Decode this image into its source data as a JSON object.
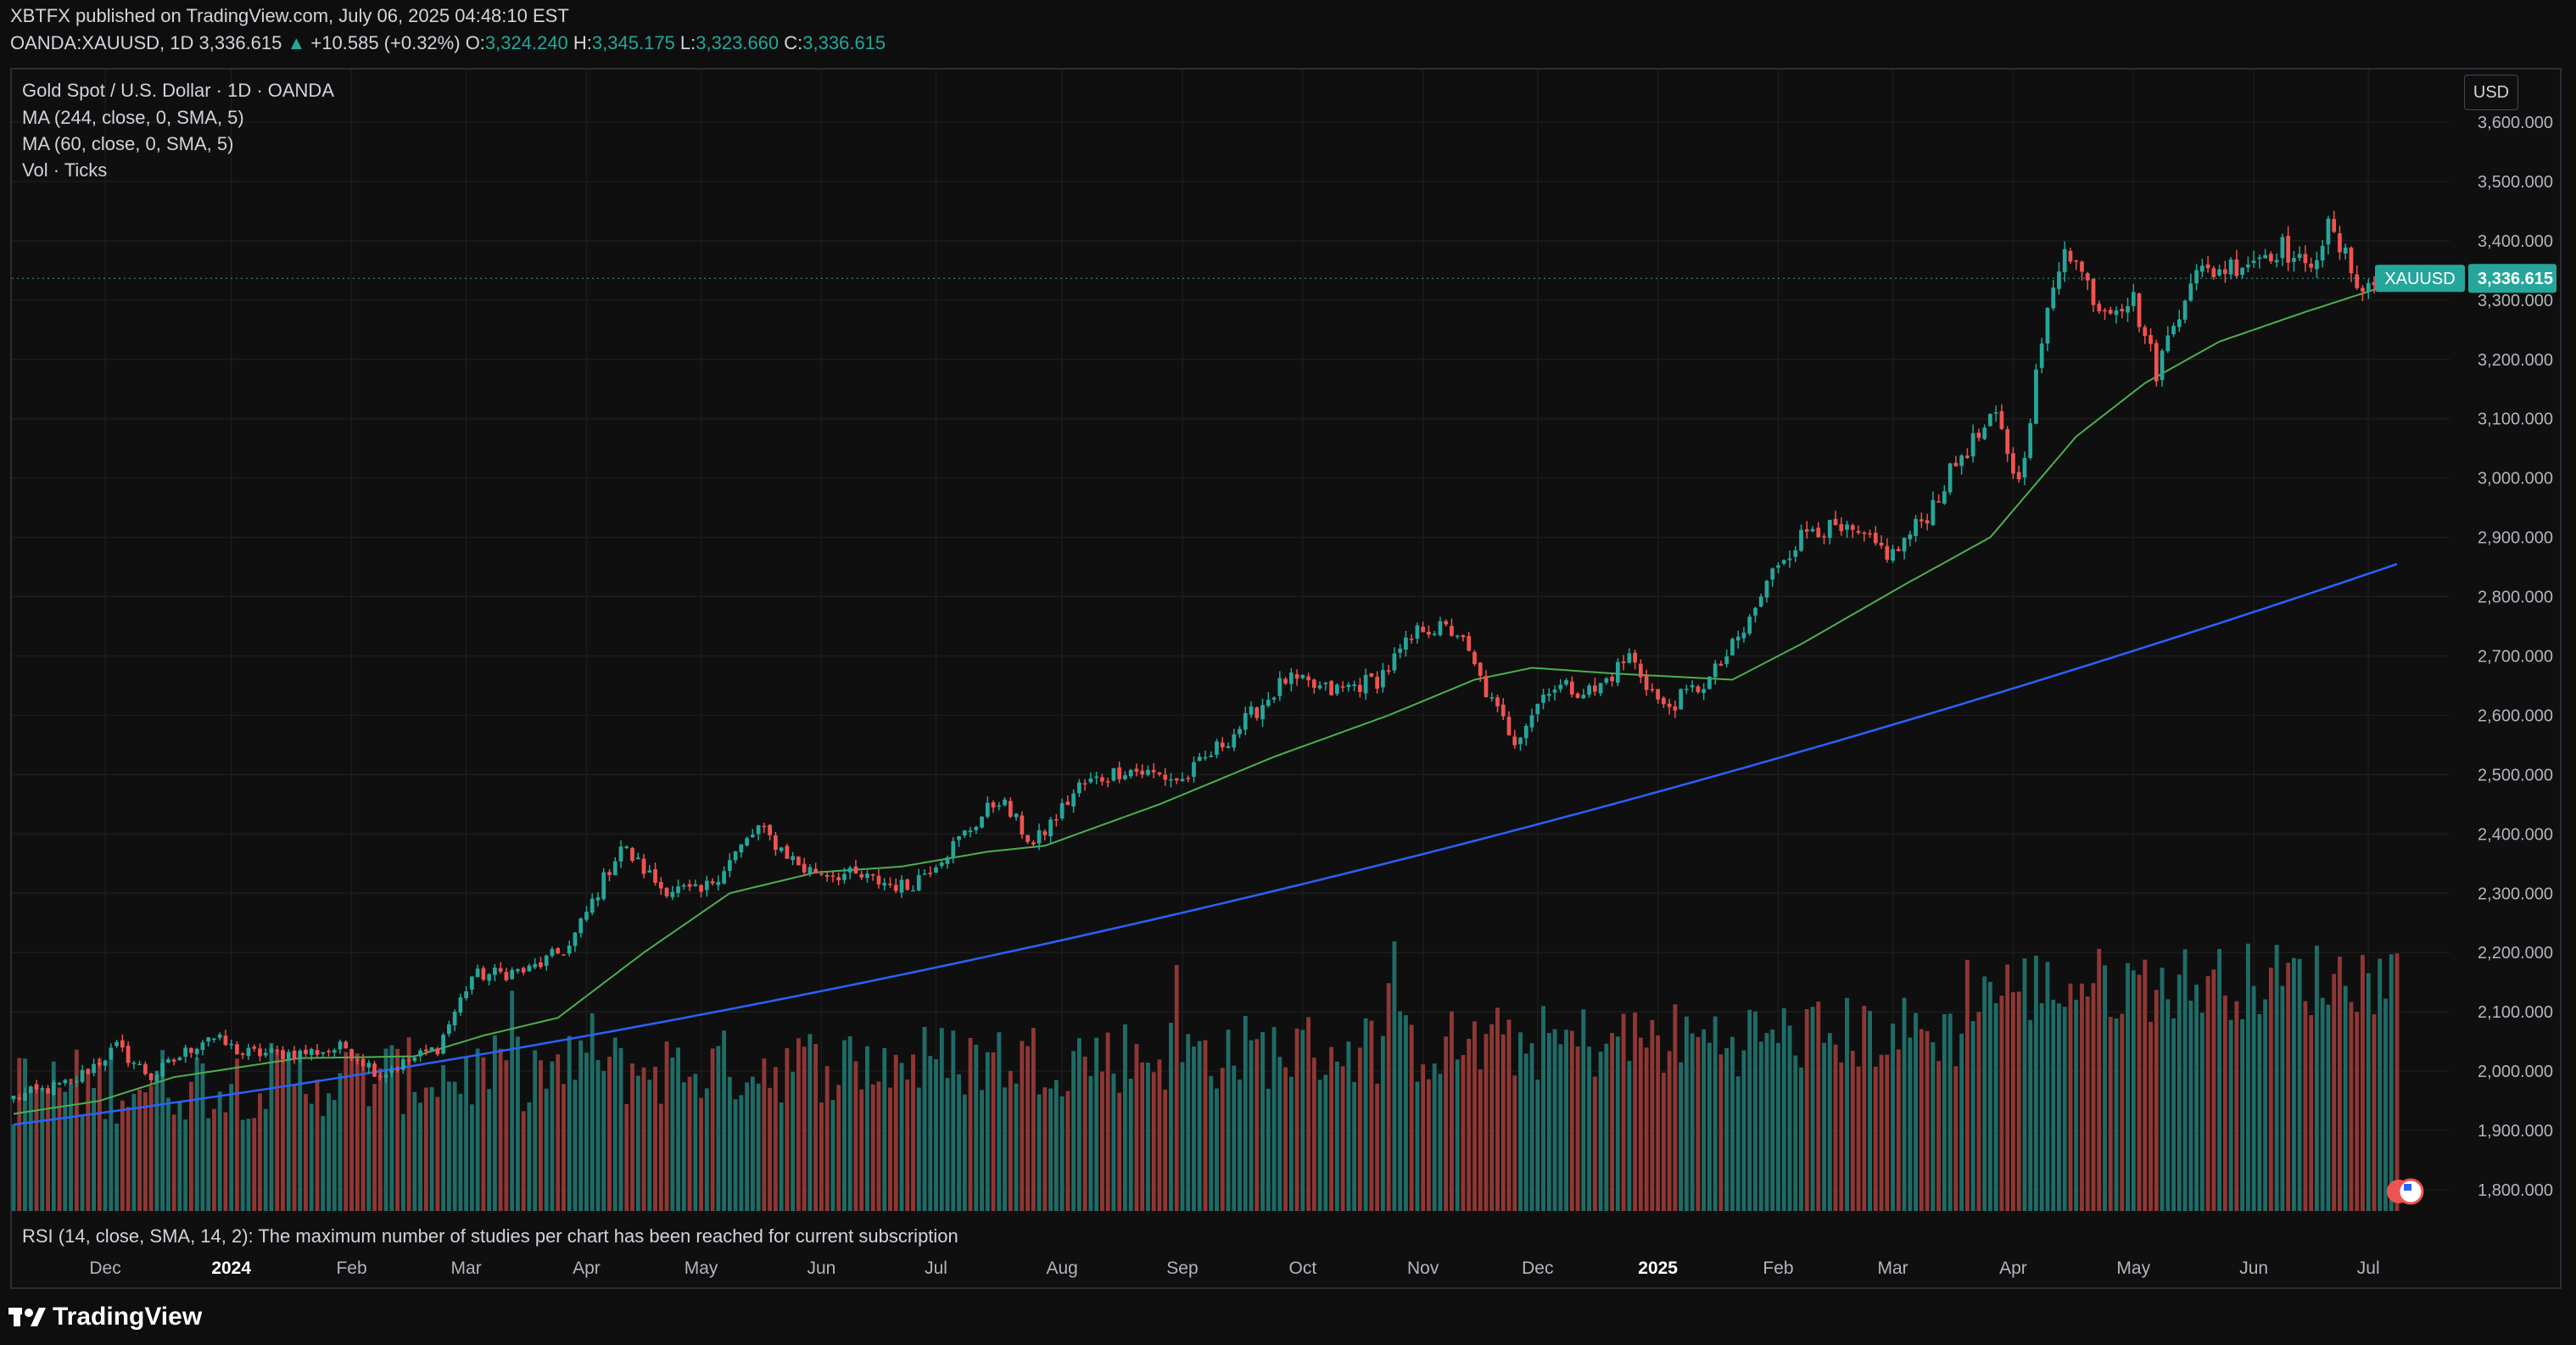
{
  "header": {
    "publisher_line": "XBTFX published on TradingView.com, July 06, 2025 04:48:10 EST",
    "symbol": "OANDA:XAUUSD, 1D",
    "last": "3,336.615",
    "change_arrow": "▲",
    "change": "+10.585 (+0.32%)",
    "o_label": "O:",
    "o_value": "3,324.240",
    "h_label": "H:",
    "h_value": "3,345.175",
    "l_label": "L:",
    "l_value": "3,323.660",
    "c_label": "C:",
    "c_value": "3,336.615"
  },
  "legend": {
    "title": "Gold Spot / U.S. Dollar · 1D · OANDA",
    "ma1": "MA (244, close, 0, SMA, 5)",
    "ma2": "MA (60, close, 0, SMA, 5)",
    "vol": "Vol · Ticks"
  },
  "currency_button": "USD",
  "rsi_message": "RSI (14, close, SMA, 14, 2): The maximum number of studies per chart has been reached for current subscription",
  "brand": "TradingView",
  "colors": {
    "up": "#26a69a",
    "down": "#ef5350",
    "vol_up": "#1f6b66",
    "vol_down": "#8e3734",
    "ma244": "#2962ff",
    "ma60": "#4caf50",
    "price_tag": "#26a69a"
  },
  "chart_data": {
    "type": "candlestick",
    "title": "Gold Spot / U.S. Dollar · 1D · OANDA",
    "price_axis": {
      "ylim": [
        1760,
        3640
      ],
      "ticks": [
        1800,
        1900,
        2000,
        2100,
        2200,
        2300,
        2400,
        2500,
        2600,
        2700,
        2800,
        2900,
        3000,
        3100,
        3200,
        3300,
        3400,
        3500,
        3600
      ],
      "tick_labels": [
        "1,800.000",
        "1,900.000",
        "2,000.000",
        "2,100.000",
        "2,200.000",
        "2,300.000",
        "2,400.000",
        "2,500.000",
        "2,600.000",
        "2,700.000",
        "2,800.000",
        "2,900.000",
        "3,000.000",
        "3,100.000",
        "3,200.000",
        "3,300.000",
        "3,400.000",
        "3,500.000",
        "3,600.000"
      ]
    },
    "time_axis": {
      "labels": [
        "Dec",
        "2024",
        "Feb",
        "Mar",
        "Apr",
        "May",
        "Jun",
        "Jul",
        "Aug",
        "Sep",
        "Oct",
        "Nov",
        "Dec",
        "2025",
        "Feb",
        "Mar",
        "Apr",
        "May",
        "Jun",
        "Jul"
      ],
      "bold": [
        "2024",
        "2025"
      ],
      "label_bar_index": [
        16,
        38,
        59,
        79,
        100,
        120,
        141,
        161,
        183,
        204,
        225,
        246,
        266,
        287,
        308,
        328,
        349,
        370,
        391,
        411
      ]
    },
    "price_line": {
      "label": "XAUUSD",
      "value": 3336.615,
      "value_label": "3,336.615"
    },
    "ma244": {
      "start": 1910,
      "end": 2855
    },
    "close_anchors": [
      [
        0,
        1955
      ],
      [
        10,
        1980
      ],
      [
        18,
        2040
      ],
      [
        24,
        1990
      ],
      [
        34,
        2060
      ],
      [
        40,
        2030
      ],
      [
        50,
        2030
      ],
      [
        58,
        2040
      ],
      [
        64,
        1995
      ],
      [
        74,
        2040
      ],
      [
        80,
        2160
      ],
      [
        90,
        2170
      ],
      [
        97,
        2210
      ],
      [
        106,
        2380
      ],
      [
        113,
        2310
      ],
      [
        120,
        2300
      ],
      [
        130,
        2410
      ],
      [
        138,
        2340
      ],
      [
        146,
        2330
      ],
      [
        156,
        2310
      ],
      [
        164,
        2380
      ],
      [
        172,
        2460
      ],
      [
        178,
        2380
      ],
      [
        186,
        2480
      ],
      [
        194,
        2510
      ],
      [
        204,
        2490
      ],
      [
        214,
        2580
      ],
      [
        222,
        2660
      ],
      [
        230,
        2640
      ],
      [
        238,
        2660
      ],
      [
        246,
        2750
      ],
      [
        252,
        2740
      ],
      [
        258,
        2620
      ],
      [
        262,
        2560
      ],
      [
        268,
        2650
      ],
      [
        276,
        2640
      ],
      [
        282,
        2700
      ],
      [
        288,
        2610
      ],
      [
        296,
        2660
      ],
      [
        302,
        2740
      ],
      [
        308,
        2860
      ],
      [
        314,
        2920
      ],
      [
        322,
        2900
      ],
      [
        328,
        2870
      ],
      [
        334,
        2940
      ],
      [
        340,
        3040
      ],
      [
        346,
        3100
      ],
      [
        350,
        2990
      ],
      [
        354,
        3230
      ],
      [
        358,
        3400
      ],
      [
        364,
        3290
      ],
      [
        370,
        3300
      ],
      [
        374,
        3180
      ],
      [
        380,
        3340
      ],
      [
        388,
        3360
      ],
      [
        396,
        3390
      ],
      [
        400,
        3350
      ],
      [
        404,
        3420
      ],
      [
        410,
        3320
      ],
      [
        416,
        3336.615
      ]
    ],
    "ma60_anchors": [
      [
        0,
        1928
      ],
      [
        15,
        1950
      ],
      [
        28,
        1990
      ],
      [
        50,
        2022
      ],
      [
        70,
        2025
      ],
      [
        82,
        2060
      ],
      [
        95,
        2090
      ],
      [
        110,
        2200
      ],
      [
        125,
        2300
      ],
      [
        140,
        2335
      ],
      [
        155,
        2345
      ],
      [
        170,
        2370
      ],
      [
        180,
        2380
      ],
      [
        200,
        2450
      ],
      [
        220,
        2530
      ],
      [
        240,
        2600
      ],
      [
        255,
        2660
      ],
      [
        265,
        2680
      ],
      [
        280,
        2670
      ],
      [
        300,
        2660
      ],
      [
        312,
        2720
      ],
      [
        330,
        2820
      ],
      [
        345,
        2900
      ],
      [
        360,
        3070
      ],
      [
        372,
        3160
      ],
      [
        385,
        3230
      ],
      [
        400,
        3280
      ],
      [
        416,
        3330
      ]
    ],
    "volume": {
      "bars": 417,
      "max_ticks": 100,
      "note": "relative tick volume, rises from ~30 to ~90 in 2025"
    }
  }
}
